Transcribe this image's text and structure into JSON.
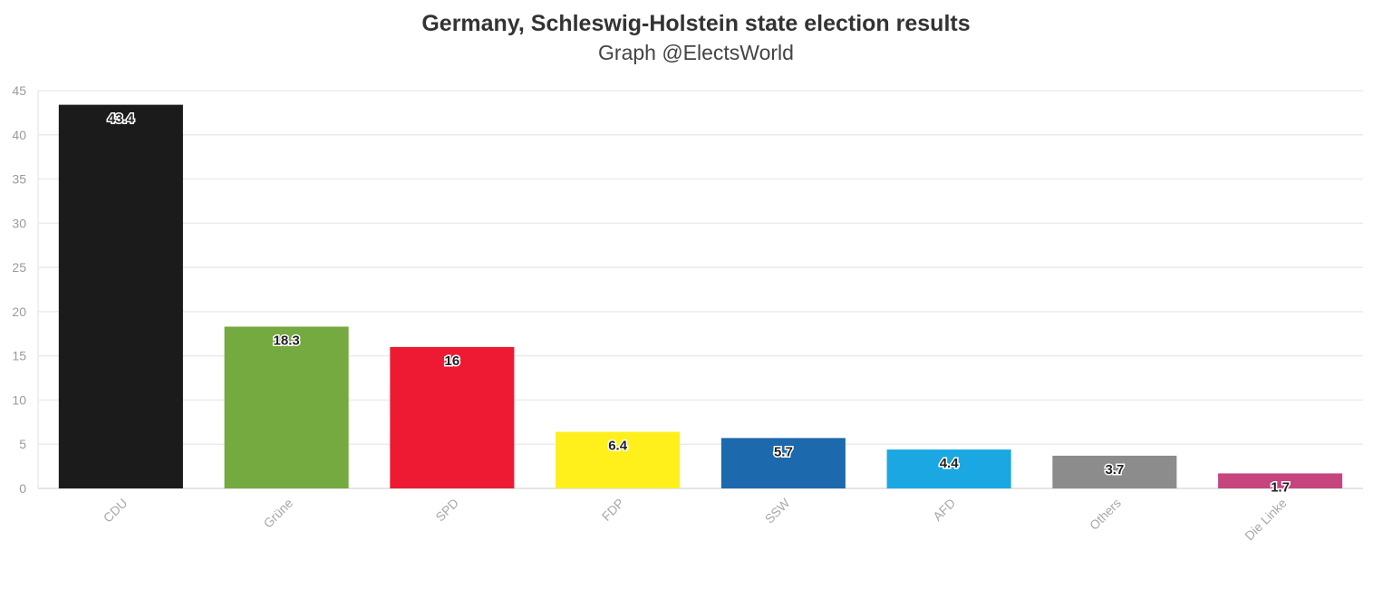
{
  "chart_data": {
    "type": "bar",
    "title": "Germany, Schleswig-Holstein state election results",
    "subtitle": "Graph @ElectsWorld",
    "categories": [
      "CDU",
      "Grüne",
      "SPD",
      "FDP",
      "SSW",
      "AFD",
      "Others",
      "Die Linke"
    ],
    "values": [
      43.4,
      18.3,
      16,
      6.4,
      5.7,
      4.4,
      3.7,
      1.7
    ],
    "value_labels": [
      "43.4",
      "18.3",
      "16",
      "6.4",
      "5.7",
      "4.4",
      "3.7",
      "1.7"
    ],
    "colors": [
      "#1b1b1b",
      "#74aa3f",
      "#ee1a33",
      "#fff01c",
      "#1d69ae",
      "#1ba8e2",
      "#8c8c8c",
      "#c6457f"
    ],
    "yticks": [
      "0",
      "5",
      "10",
      "15",
      "20",
      "25",
      "30",
      "35",
      "40",
      "45"
    ],
    "ylim": [
      0,
      45
    ],
    "xlabel": "",
    "ylabel": "",
    "grid": true,
    "legend": "none"
  }
}
